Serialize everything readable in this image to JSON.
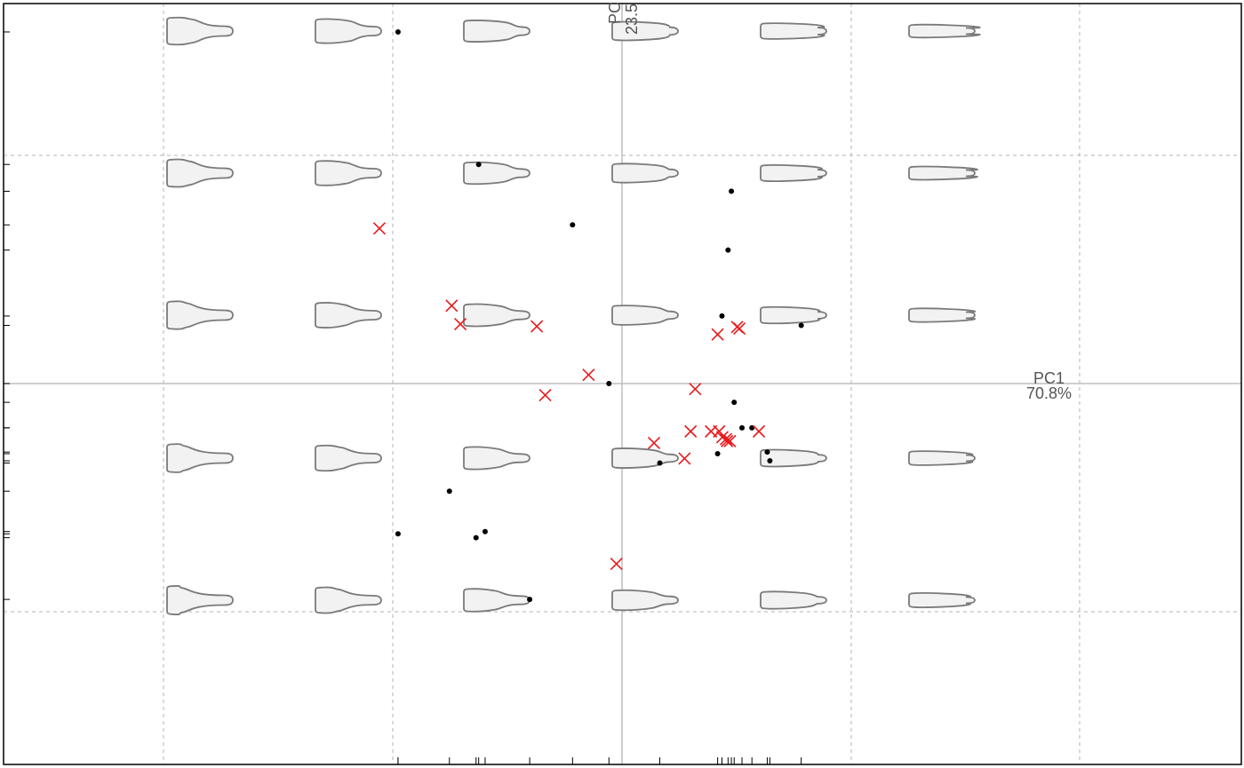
{
  "chart_data": {
    "type": "scatter",
    "title": "",
    "x_axis": {
      "label": "PC1",
      "variance": "70.8%"
    },
    "y_axis": {
      "label": "PC",
      "variance": "23.5"
    },
    "grid": true,
    "morphospace_backdrop": {
      "description_free": true,
      "grid_cols": 6,
      "grid_rows": 5
    },
    "colors": {
      "frame": "#000000",
      "grid": "#b3b3b3",
      "origin_axes": "#bdbdbd",
      "shape_fill": "#f2f2f2",
      "shape_stroke": "#7a7a7a",
      "group_dot": "#000000",
      "group_cross": "#e8191c"
    },
    "series": [
      {
        "marker": "dot",
        "color": "#000000",
        "points": [
          [
            -0.1286,
            0.1088
          ],
          [
            -0.0823,
            0.0678
          ],
          [
            -0.0284,
            0.0491
          ],
          [
            -0.0075,
            0.0
          ],
          [
            0.0217,
            -0.0246
          ],
          [
            0.0574,
            0.0209
          ],
          [
            0.0549,
            -0.0217
          ],
          [
            0.0609,
            0.0413
          ],
          [
            0.0628,
            0.0595
          ],
          [
            0.0689,
            -0.0137
          ],
          [
            0.0644,
            -0.0058
          ],
          [
            0.0746,
            -0.0137
          ],
          [
            0.0834,
            -0.0212
          ],
          [
            0.0849,
            -0.0239
          ],
          [
            0.1029,
            0.018
          ],
          [
            -0.1286,
            -0.0465
          ],
          [
            -0.0991,
            -0.0333
          ],
          [
            -0.0838,
            -0.0477
          ],
          [
            -0.0786,
            -0.0458
          ],
          [
            -0.053,
            -0.0668
          ]
        ]
      },
      {
        "marker": "cross",
        "color": "#e8191c",
        "points": [
          [
            -0.1393,
            0.048
          ],
          [
            -0.0978,
            0.0241
          ],
          [
            -0.0928,
            0.0184
          ],
          [
            -0.0489,
            0.0177
          ],
          [
            -0.0192,
            0.0027
          ],
          [
            -0.0441,
            -0.0036
          ],
          [
            0.042,
            -0.0017
          ],
          [
            0.0184,
            -0.0184
          ],
          [
            0.0394,
            -0.0148
          ],
          [
            0.0511,
            -0.0148
          ],
          [
            0.0558,
            -0.0148
          ],
          [
            0.0597,
            -0.0172
          ],
          [
            0.0576,
            -0.0166
          ],
          [
            0.062,
            -0.0178
          ],
          [
            0.0603,
            -0.0178
          ],
          [
            0.0661,
            0.0175
          ],
          [
            0.0786,
            -0.0148
          ],
          [
            0.0359,
            -0.0232
          ],
          [
            0.0549,
            0.0152
          ],
          [
            0.0674,
            0.017
          ],
          [
            -0.0032,
            -0.0558
          ]
        ]
      }
    ]
  }
}
